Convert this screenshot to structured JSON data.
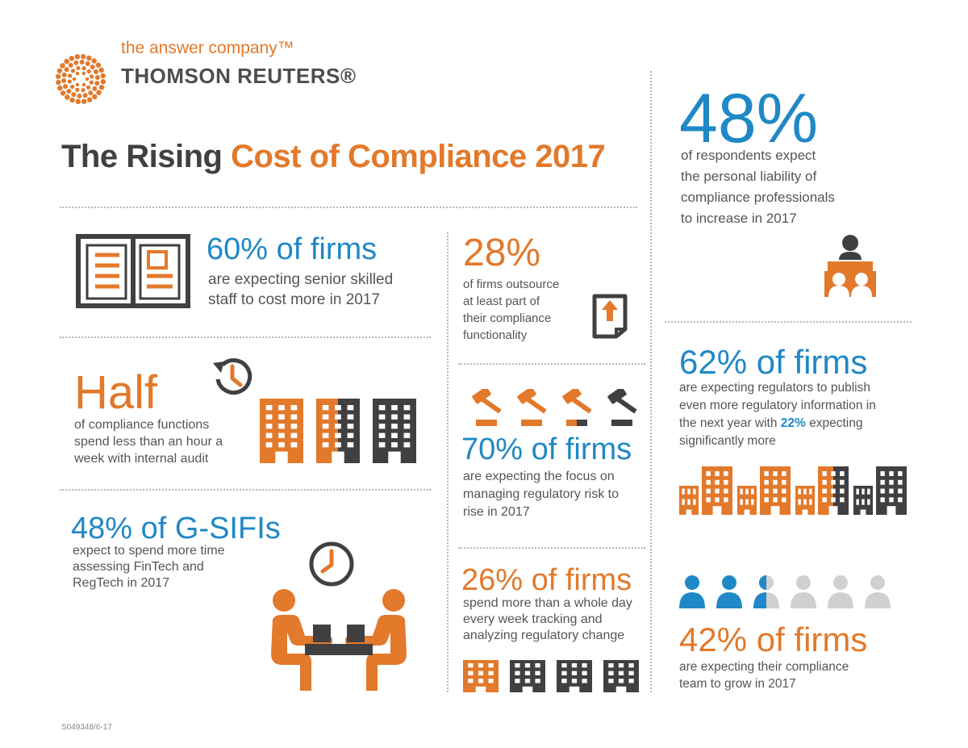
{
  "brand": {
    "tagline": "the answer company™",
    "name": "THOMSON REUTERS®",
    "logo_icon": "dots-ring-icon"
  },
  "title": {
    "part1": "The Rising",
    "part2": "Cost of Compliance 2017"
  },
  "colors": {
    "orange": "#e2792b",
    "blue": "#1f88c6",
    "dark_gray": "#404042",
    "light_gray": "#cfd0d2"
  },
  "stats": {
    "liability": {
      "value": "48%",
      "desc_lines": [
        "of respondents expect",
        "the personal liability of",
        "compliance professionals",
        "to increase in 2017"
      ],
      "icon": "meeting-table-icon"
    },
    "senior_staff": {
      "value": "60% of firms",
      "desc_lines": [
        "are expecting senior skilled",
        "staff to cost more in 2017"
      ],
      "icon": "open-book-icon"
    },
    "outsource": {
      "value": "28%",
      "desc_lines": [
        "of firms outsource",
        "at least part of",
        "their compliance",
        "functionality"
      ],
      "icon": "document-upload-icon"
    },
    "internal_audit": {
      "value": "Half",
      "desc_lines": [
        "of compliance functions",
        "spend less than an hour a",
        "week with internal audit"
      ],
      "icon": "history-clock-icon"
    },
    "regulatory_risk": {
      "value": "70% of firms",
      "desc_lines": [
        "are expecting the focus on",
        "managing regulatory risk to",
        "rise in 2017"
      ],
      "icon": "gavel-icon"
    },
    "regulators_publish": {
      "value": "62% of firms",
      "desc_line1": "are expecting regulators to publish",
      "desc_line2": "even more regulatory information in",
      "desc_line3_pre": "the next year with ",
      "desc_line3_highlight": "22%",
      "desc_line3_post": " expecting",
      "desc_line4": "significantly more"
    },
    "gsifis": {
      "value": "48% of G-SIFIs",
      "desc_lines": [
        "expect to spend more time",
        "assessing FinTech and",
        "RegTech in 2017"
      ],
      "icon": "clock-icon"
    },
    "tracking_change": {
      "value": "26% of firms",
      "desc_lines": [
        "spend more than a whole day",
        "every week tracking and",
        "analyzing regulatory change"
      ]
    },
    "team_grow": {
      "value": "42% of firms",
      "desc_lines": [
        "are expecting their compliance",
        "team to grow in 2017"
      ],
      "icon": "person-icon"
    }
  },
  "footer": {
    "code": "S049348/6-17"
  }
}
